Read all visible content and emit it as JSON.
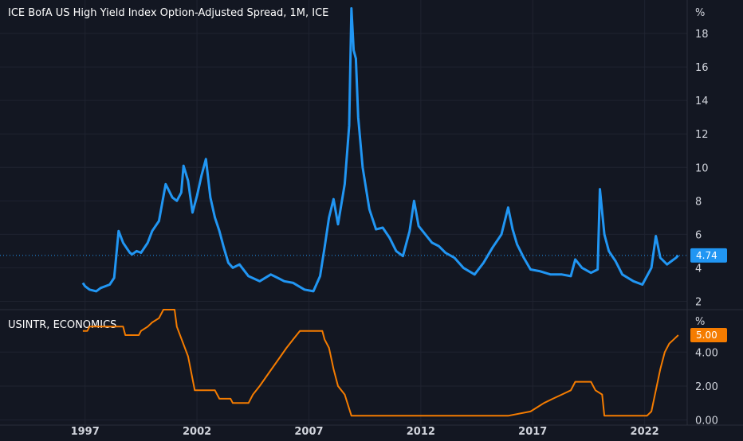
{
  "chart_data": [
    {
      "type": "line",
      "title": "ICE BofA US High Yield Index Option-Adjusted Spread, 1M, ICE",
      "unit_label": "%",
      "ylim": [
        1.5,
        20
      ],
      "yticks": [
        2,
        4,
        6,
        8,
        10,
        12,
        14,
        16,
        18
      ],
      "ytick_labels": [
        "2",
        "4",
        "6",
        "8",
        "10",
        "12",
        "14",
        "16",
        "18"
      ],
      "grid": true,
      "line_color": "#2196f3",
      "last_value": 4.74,
      "last_value_label": "4.74",
      "series": [
        {
          "x": [
            1996.9,
            1997.0,
            1997.2,
            1997.5,
            1997.7,
            1997.9,
            1998.1,
            1998.3,
            1998.5,
            1998.7,
            1998.9,
            1999.0,
            1999.1,
            1999.3,
            1999.5,
            1999.8,
            2000.0,
            2000.3,
            2000.6,
            2000.9,
            2001.1,
            2001.3,
            2001.4,
            2001.6,
            2001.8,
            2002.0,
            2002.2,
            2002.4,
            2002.6,
            2002.8,
            2003.0,
            2003.2,
            2003.4,
            2003.6,
            2003.9,
            2004.3,
            2004.8,
            2005.3,
            2005.6,
            2005.9,
            2006.3,
            2006.8,
            2007.2,
            2007.5,
            2007.7,
            2007.9,
            2008.1,
            2008.3,
            2008.5,
            2008.6,
            2008.8,
            2008.9,
            2009.0,
            2009.1,
            2009.2,
            2009.4,
            2009.7,
            2010.0,
            2010.3,
            2010.6,
            2010.9,
            2011.2,
            2011.5,
            2011.7,
            2011.9,
            2012.2,
            2012.5,
            2012.8,
            2013.1,
            2013.5,
            2013.9,
            2014.4,
            2014.8,
            2015.2,
            2015.6,
            2015.9,
            2016.1,
            2016.3,
            2016.6,
            2016.9,
            2017.3,
            2017.8,
            2018.3,
            2018.7,
            2018.9,
            2019.2,
            2019.6,
            2019.9,
            2020.0,
            2020.2,
            2020.4,
            2020.7,
            2021.0,
            2021.5,
            2021.9,
            2022.3,
            2022.5,
            2022.7,
            2023.0,
            2023.2,
            2023.4,
            2023.5
          ],
          "y": [
            3.1,
            2.9,
            2.7,
            2.6,
            2.8,
            2.9,
            3.0,
            3.4,
            6.2,
            5.5,
            5.1,
            4.9,
            4.8,
            5.0,
            4.9,
            5.5,
            6.2,
            6.8,
            9.0,
            8.2,
            8.0,
            8.5,
            10.1,
            9.2,
            7.3,
            8.3,
            9.5,
            10.5,
            8.2,
            7.0,
            6.2,
            5.2,
            4.3,
            4.0,
            4.2,
            3.5,
            3.2,
            3.6,
            3.4,
            3.2,
            3.1,
            2.7,
            2.6,
            3.5,
            5.2,
            7.0,
            8.1,
            6.6,
            8.2,
            9.0,
            12.5,
            19.5,
            17.0,
            16.5,
            13.0,
            10.0,
            7.5,
            6.3,
            6.4,
            5.8,
            5.0,
            4.7,
            6.2,
            8.0,
            6.5,
            6.0,
            5.5,
            5.3,
            4.9,
            4.6,
            4.0,
            3.6,
            4.3,
            5.2,
            6.0,
            7.6,
            6.3,
            5.4,
            4.6,
            3.9,
            3.8,
            3.6,
            3.6,
            3.5,
            4.5,
            4.0,
            3.7,
            3.9,
            8.7,
            6.0,
            5.0,
            4.4,
            3.6,
            3.2,
            3.0,
            4.0,
            5.9,
            4.6,
            4.2,
            4.4,
            4.6,
            4.74
          ]
        }
      ]
    },
    {
      "type": "line",
      "title": "USINTR, ECONOMICS",
      "unit_label": "%",
      "ylim": [
        -0.3,
        6.5
      ],
      "yticks": [
        0,
        2,
        4
      ],
      "ytick_labels": [
        "0.00",
        "2.00",
        "4.00"
      ],
      "grid": true,
      "line_color": "#f57c00",
      "last_value": 5.0,
      "last_value_label": "5.00",
      "series": [
        {
          "x": [
            1996.9,
            1997.1,
            1997.2,
            1998.7,
            1998.8,
            1999.4,
            1999.5,
            1999.8,
            2000.0,
            2000.3,
            2000.5,
            2001.0,
            2001.1,
            2001.6,
            2001.9,
            2002.8,
            2003.0,
            2003.5,
            2003.6,
            2004.3,
            2004.5,
            2004.8,
            2005.2,
            2005.6,
            2006.0,
            2006.3,
            2006.6,
            2007.6,
            2007.7,
            2007.9,
            2008.1,
            2008.3,
            2008.6,
            2008.9,
            2015.9,
            2016.9,
            2017.2,
            2017.5,
            2017.9,
            2018.3,
            2018.7,
            2018.9,
            2019.6,
            2019.8,
            2020.1,
            2020.2,
            2022.1,
            2022.3,
            2022.5,
            2022.7,
            2022.9,
            2023.1,
            2023.3,
            2023.5
          ],
          "y": [
            5.25,
            5.25,
            5.5,
            5.5,
            5.0,
            5.0,
            5.25,
            5.5,
            5.75,
            6.0,
            6.5,
            6.5,
            5.5,
            3.75,
            1.75,
            1.75,
            1.25,
            1.25,
            1.0,
            1.0,
            1.5,
            2.0,
            2.75,
            3.5,
            4.25,
            4.75,
            5.25,
            5.25,
            4.75,
            4.25,
            3.0,
            2.0,
            1.5,
            0.25,
            0.25,
            0.5,
            0.75,
            1.0,
            1.25,
            1.5,
            1.75,
            2.25,
            2.25,
            1.75,
            1.5,
            0.25,
            0.25,
            0.5,
            1.75,
            3.0,
            4.0,
            4.5,
            4.75,
            5.0
          ]
        }
      ]
    }
  ],
  "x_axis": {
    "xlim": [
      1993.2,
      2023.9
    ],
    "ticks": [
      1997,
      2002,
      2007,
      2012,
      2017,
      2022
    ],
    "labels": [
      "1997",
      "2002",
      "2007",
      "2012",
      "2017",
      "2022"
    ]
  }
}
